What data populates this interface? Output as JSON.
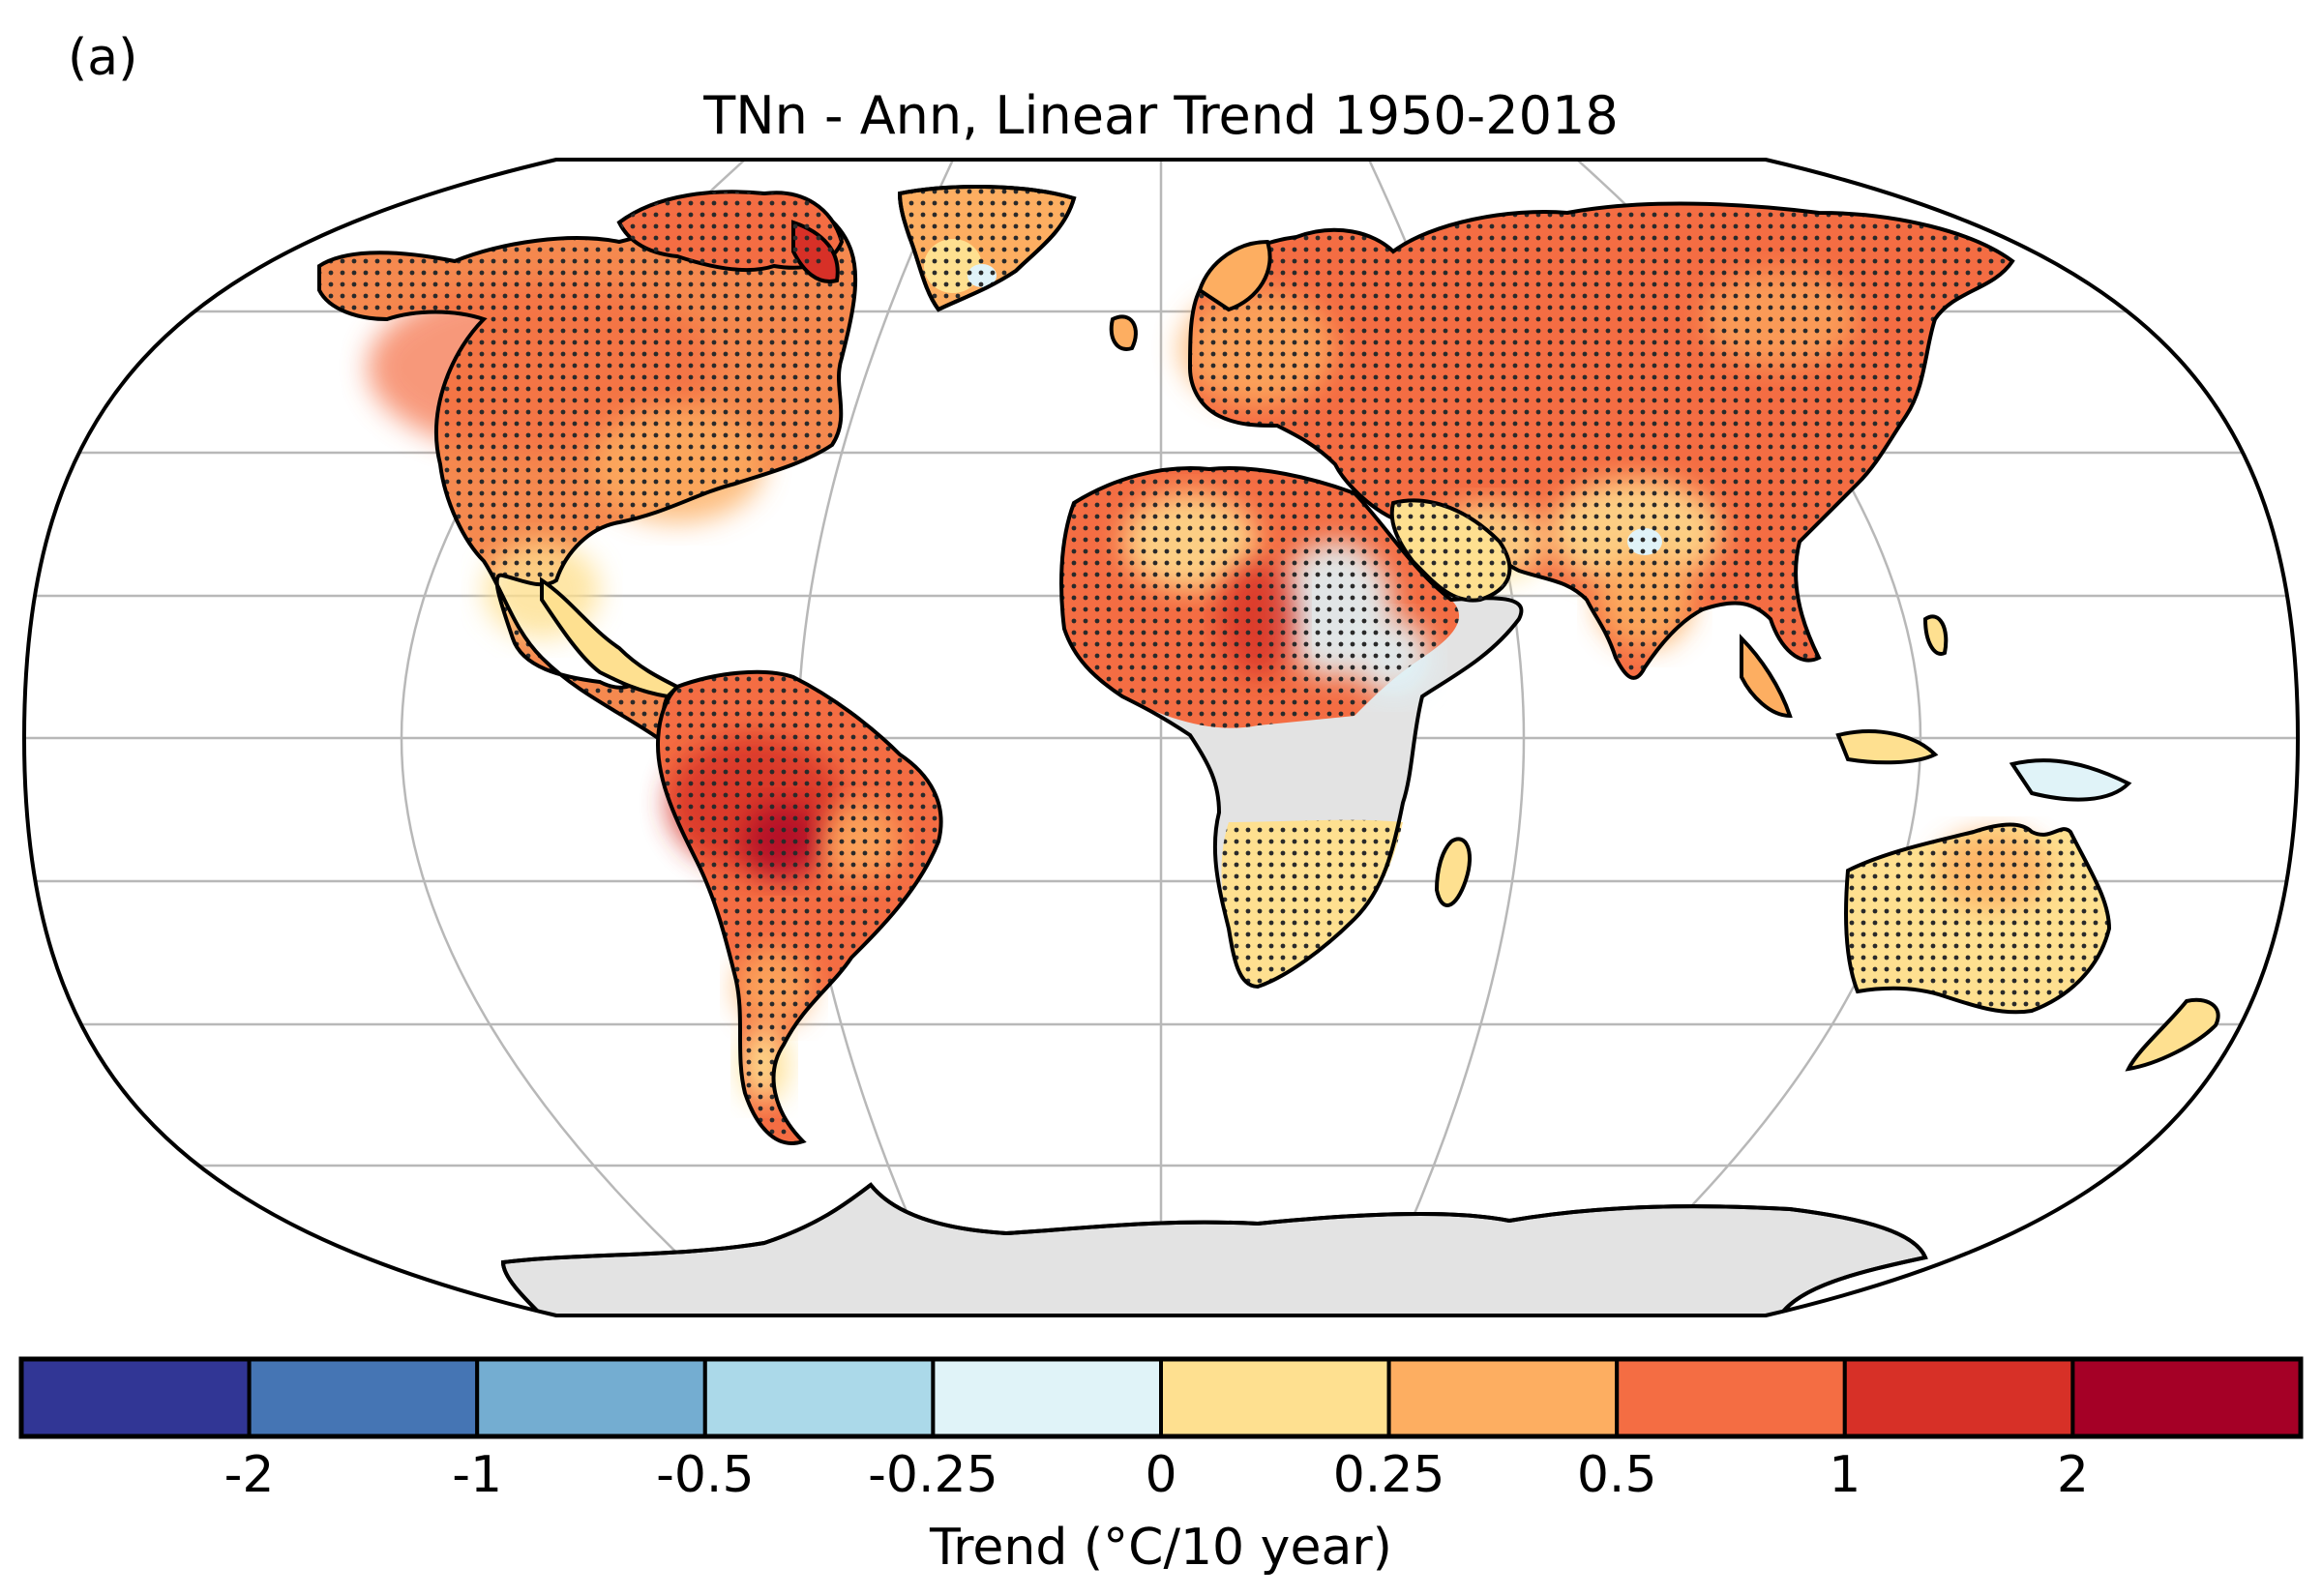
{
  "panel_label": "(a)",
  "title": "TNn - Ann, Linear Trend 1950-2018",
  "colorbar": {
    "label": "Trend (°C/10 year)",
    "tick_labels": [
      "-2",
      "-1",
      "-0.5",
      "-0.25",
      "0",
      "0.25",
      "0.5",
      "1",
      "2"
    ],
    "bin_colors": [
      "#313695",
      "#4575b4",
      "#74add1",
      "#abd9e9",
      "#e0f3f8",
      "#fee090",
      "#fdae61",
      "#f46d43",
      "#d73027",
      "#a50026"
    ],
    "no_data_color": "#e3e3e3"
  },
  "chart_data": {
    "type": "heatmap",
    "title": "TNn - Ann, Linear Trend 1950-2018",
    "projection": "Robinson",
    "variable": "TNn",
    "period": "1950-2018",
    "colorbar_label": "Trend (°C/10 year)",
    "colorbar_bounds": [
      -2,
      -1,
      -0.5,
      -0.25,
      0,
      0.25,
      0.5,
      1,
      2
    ],
    "stippling": "dots",
    "regions": [
      {
        "name": "North America",
        "trend_bin": "0.5 to 1",
        "color": "#f46d43"
      },
      {
        "name": "Canadian Arctic",
        "trend_bin": "1 to 2",
        "color": "#d73027"
      },
      {
        "name": "Greenland",
        "trend_bin": "0.25 to 0.5",
        "color": "#fdae61"
      },
      {
        "name": "South America (Amazon)",
        "trend_bin": "1 to 2",
        "color": "#d73027"
      },
      {
        "name": "Southern South America",
        "trend_bin": "0.25 to 0.5",
        "color": "#fdae61"
      },
      {
        "name": "Europe",
        "trend_bin": "0.25 to 0.5",
        "color": "#fdae61"
      },
      {
        "name": "Siberia",
        "trend_bin": "0.5 to 1",
        "color": "#f46d43"
      },
      {
        "name": "Central Asia",
        "trend_bin": "0.5 to 1",
        "color": "#f46d43"
      },
      {
        "name": "India",
        "trend_bin": "0.25 to 0.5",
        "color": "#fdae61"
      },
      {
        "name": "Southeast Asia",
        "trend_bin": "0.25 to 0.5",
        "color": "#fdae61"
      },
      {
        "name": "Sahara",
        "trend_bin": "0.5 to 1",
        "color": "#f46d43"
      },
      {
        "name": "Horn of Africa",
        "trend_bin": "-0.25 to 0",
        "color": "#e0f3f8"
      },
      {
        "name": "Central Africa",
        "trend_bin": "no data",
        "color": "#e3e3e3"
      },
      {
        "name": "Southern Africa",
        "trend_bin": "0 to 0.25",
        "color": "#fee090"
      },
      {
        "name": "Australia",
        "trend_bin": "0 to 0.25",
        "color": "#fee090"
      },
      {
        "name": "Antarctica",
        "trend_bin": "no data",
        "color": "#e3e3e3"
      }
    ]
  }
}
